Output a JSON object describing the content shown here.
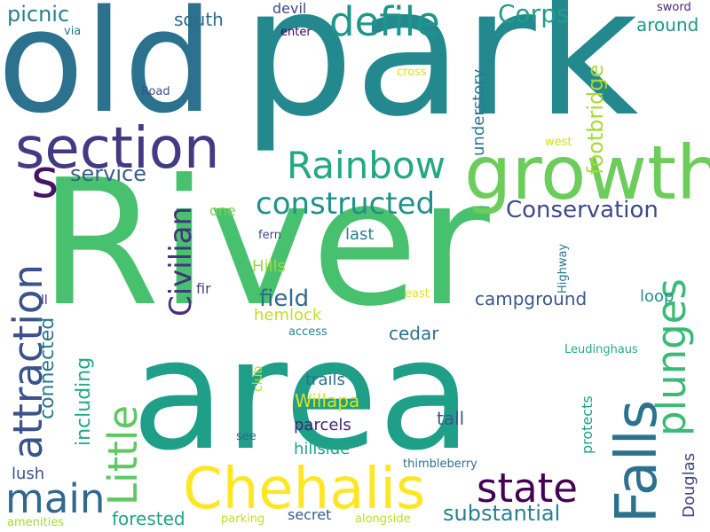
{
  "words": [
    {
      "text": "River",
      "color": "#48c16e"
    },
    {
      "text": "park",
      "color": "#23898e"
    },
    {
      "text": "old",
      "color": "#2c718e"
    },
    {
      "text": "area",
      "color": "#1f9f88"
    },
    {
      "text": "growth",
      "color": "#6ccd5a"
    },
    {
      "text": "section",
      "color": "#443983"
    },
    {
      "text": "Chehalis",
      "color": "#fde725"
    },
    {
      "text": "Falls",
      "color": "#2c728e"
    },
    {
      "text": "state",
      "color": "#440154"
    },
    {
      "text": "main",
      "color": "#31688e"
    },
    {
      "text": "defile",
      "color": "#1f968b"
    },
    {
      "text": "Rainbow",
      "color": "#22a884"
    },
    {
      "text": "constructed",
      "color": "#21918c"
    },
    {
      "text": "plunges",
      "color": "#3aba76"
    },
    {
      "text": "Little",
      "color": "#5ec962"
    },
    {
      "text": "attraction",
      "color": "#3b528b"
    },
    {
      "text": "Civilian",
      "color": "#46327e"
    },
    {
      "text": "Conservation",
      "color": "#3e4a89"
    },
    {
      "text": "Corps",
      "color": "#1f9e89"
    },
    {
      "text": "s",
      "color": "#471365"
    },
    {
      "text": "substantial",
      "color": "#26828e"
    },
    {
      "text": "field",
      "color": "#31688e"
    },
    {
      "text": "service",
      "color": "#355f8d"
    },
    {
      "text": "picnic",
      "color": "#26828e"
    },
    {
      "text": "footbridge",
      "color": "#a5db36"
    },
    {
      "text": "campground",
      "color": "#39568c"
    },
    {
      "text": "understory",
      "color": "#2a788e"
    },
    {
      "text": "connected",
      "color": "#29798e"
    },
    {
      "text": "including",
      "color": "#22a884"
    },
    {
      "text": "Douglas",
      "color": "#414487"
    },
    {
      "text": "forested",
      "color": "#20a386"
    },
    {
      "text": "lush",
      "color": "#3b528b"
    },
    {
      "text": "around",
      "color": "#1f988b"
    },
    {
      "text": "south",
      "color": "#31688e"
    },
    {
      "text": "cedar",
      "color": "#2c728e"
    },
    {
      "text": "Willapa",
      "color": "#dde318"
    },
    {
      "text": "tall",
      "color": "#38588c"
    },
    {
      "text": "Hills",
      "color": "#9fda3a"
    },
    {
      "text": "loop",
      "color": "#21918c"
    },
    {
      "text": "hemlock",
      "color": "#c2df23"
    },
    {
      "text": "last",
      "color": "#26828e"
    },
    {
      "text": "trails",
      "color": "#2e6f8e"
    },
    {
      "text": "parcels",
      "color": "#482173"
    },
    {
      "text": "hillside",
      "color": "#20a486"
    },
    {
      "text": "protects",
      "color": "#1f9f88"
    },
    {
      "text": "secret",
      "color": "#365c8d"
    },
    {
      "text": "devil",
      "color": "#3f4889"
    },
    {
      "text": "fir",
      "color": "#404688"
    },
    {
      "text": "one",
      "color": "#7ad151"
    },
    {
      "text": "club",
      "color": "#bade28"
    },
    {
      "text": "sword",
      "color": "#482878"
    },
    {
      "text": "enter",
      "color": "#440154"
    },
    {
      "text": "Highway",
      "color": "#2a788e"
    },
    {
      "text": "west",
      "color": "#d0e11c"
    },
    {
      "text": "Road",
      "color": "#3b528b"
    },
    {
      "text": "via",
      "color": "#2a788e"
    },
    {
      "text": "cross",
      "color": "#d8e219"
    },
    {
      "text": "east",
      "color": "#e5e419"
    },
    {
      "text": "fern",
      "color": "#3e4a89"
    },
    {
      "text": "access",
      "color": "#25838e"
    },
    {
      "text": "ll",
      "color": "#46337f"
    },
    {
      "text": "Leudinghaus",
      "color": "#25ac82"
    },
    {
      "text": "see",
      "color": "#31688e"
    },
    {
      "text": "thimbleberry",
      "color": "#2d708e"
    },
    {
      "text": "amenities",
      "color": "#a2da37"
    },
    {
      "text": "parking",
      "color": "#c0df25"
    },
    {
      "text": "alongside",
      "color": "#b8de29"
    }
  ]
}
